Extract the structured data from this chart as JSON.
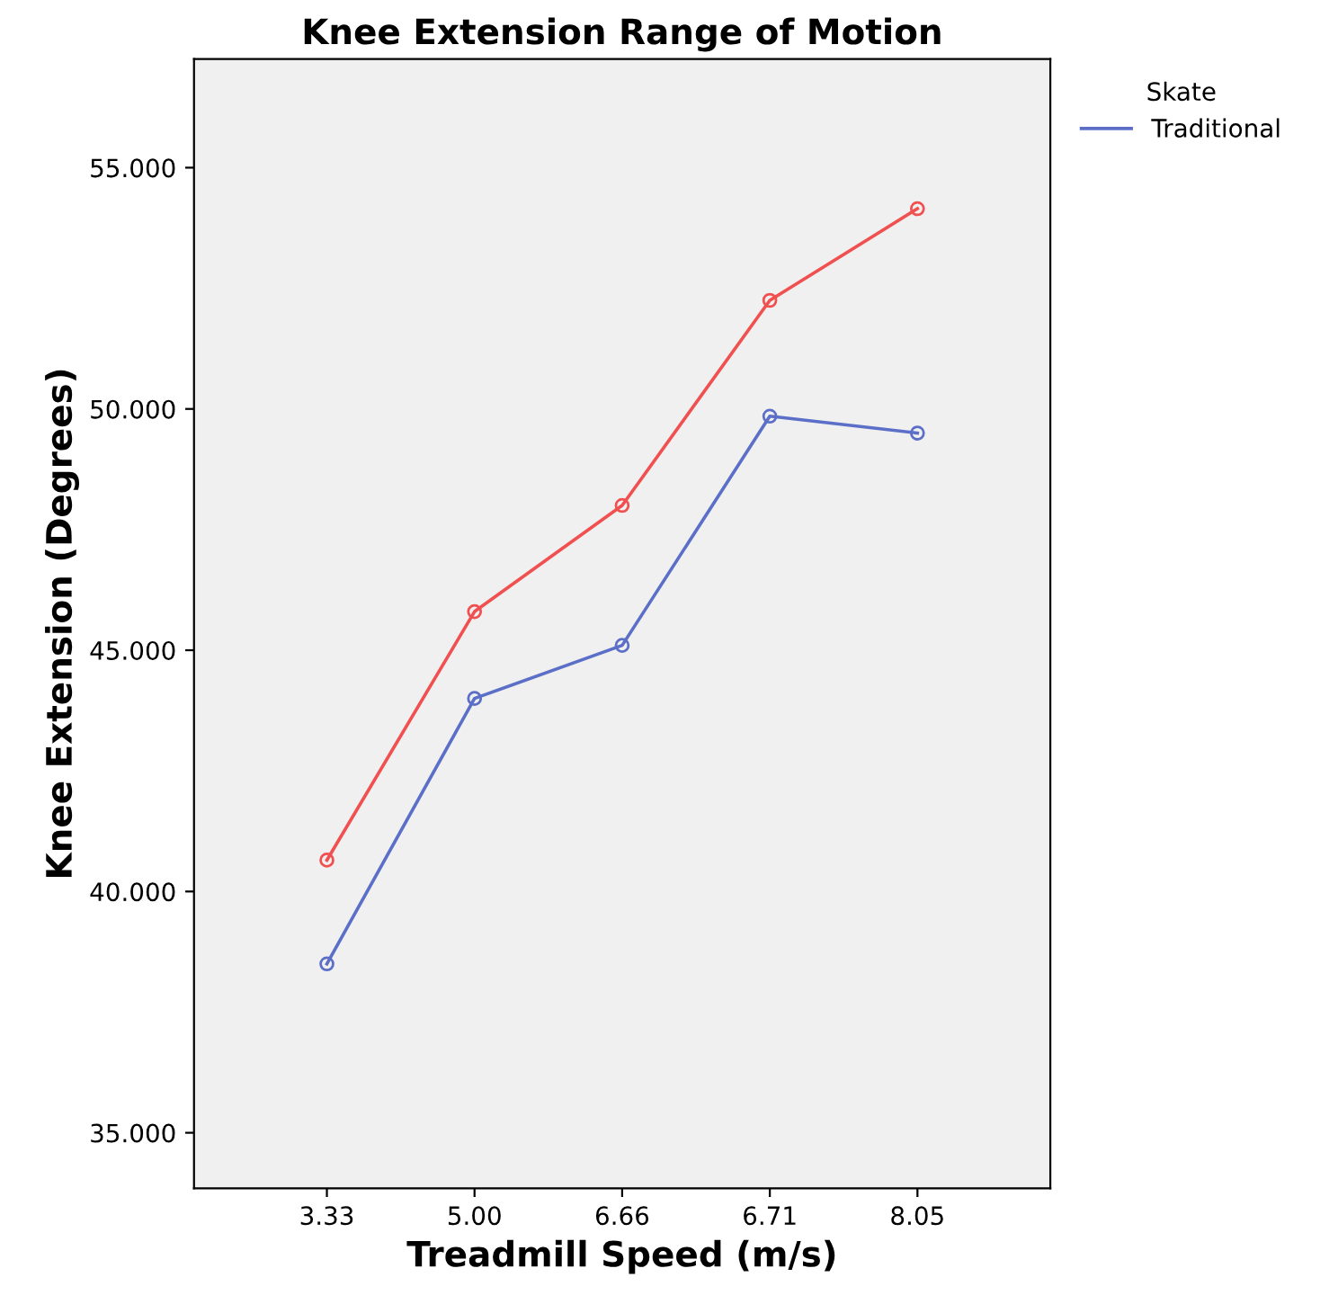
{
  "chart_data": {
    "type": "line",
    "title": "Knee Extension Range of Motion",
    "xlabel": "Treadmill Speed (m/s)",
    "ylabel": "Knee Extension (Degrees)",
    "legend_title": "Skate",
    "legend": "top right",
    "marker": "circle",
    "grid": false,
    "categories": [
      "3.33",
      "5.00",
      "6.66",
      "6.71",
      "8.05"
    ],
    "series": [
      {
        "name": "Traditional",
        "color": "#5b6fc8",
        "values": [
          38.5,
          44.0,
          45.1,
          49.85,
          49.5
        ]
      },
      {
        "color": "#f05050",
        "values": [
          40.65,
          45.8,
          48.0,
          52.25,
          54.15
        ]
      }
    ],
    "ylim": [
      33.85,
      57.25
    ],
    "yticks": [
      {
        "value": 35,
        "label": "35.000"
      },
      {
        "value": 40,
        "label": "40.000"
      },
      {
        "value": 45,
        "label": "45.000"
      },
      {
        "value": 50,
        "label": "50.000"
      },
      {
        "value": 55,
        "label": "55.000"
      }
    ]
  }
}
